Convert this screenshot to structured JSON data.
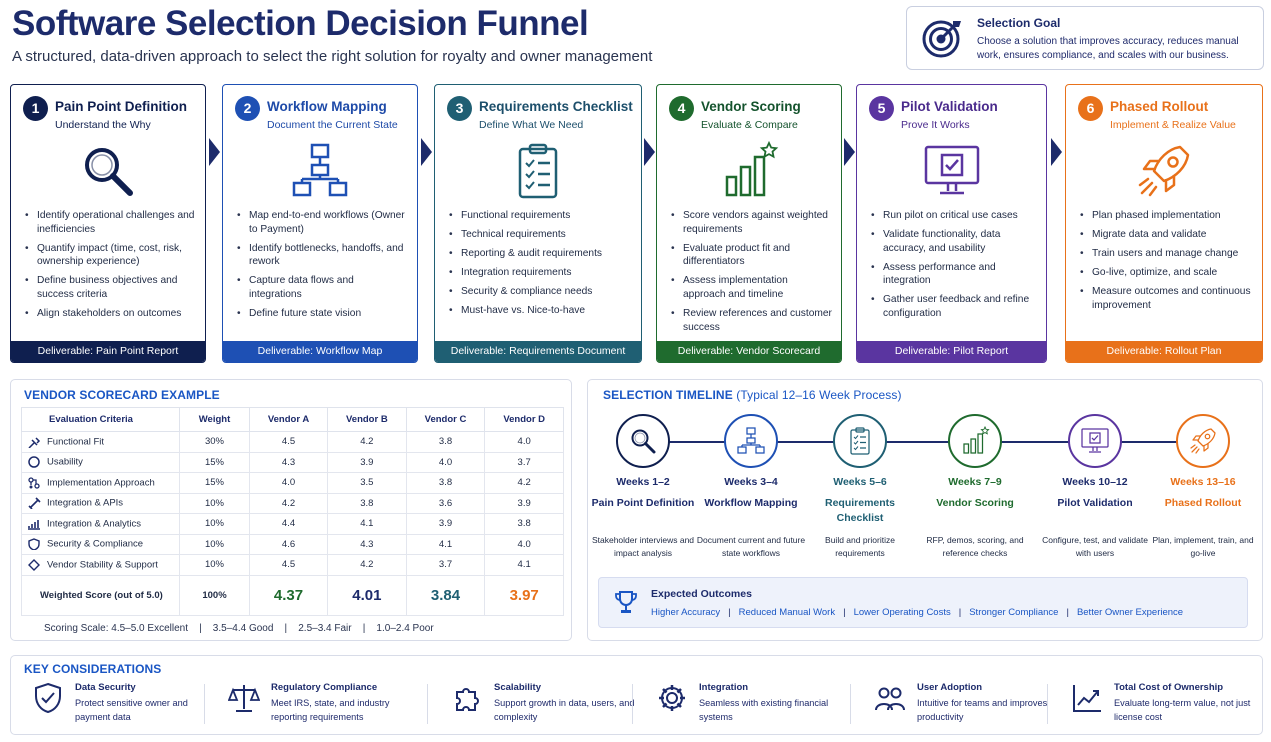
{
  "header": {
    "title": "Software Selection Decision Funnel",
    "subtitle": "A structured, data-driven approach to select the right solution for royalty and owner management"
  },
  "goal": {
    "title": "Selection Goal",
    "text": "Choose a solution that improves accuracy, reduces manual work, ensures compliance, and scales with our business.",
    "icon": "target-icon"
  },
  "steps": [
    {
      "number": "1",
      "title": "Pain Point Definition",
      "subtitle": "Understand the Why",
      "icon": "magnifier-icon",
      "color": "#0f1f4f",
      "text_color": "#0f1f4f",
      "items": [
        "Identify operational challenges and inefficiencies",
        "Quantify impact (time, cost, risk, ownership experience)",
        "Define business objectives and success criteria",
        "Align stakeholders on outcomes"
      ],
      "deliverable": "Deliverable: Pain Point Report"
    },
    {
      "number": "2",
      "title": "Workflow Mapping",
      "subtitle": "Document the Current State",
      "icon": "workflow-icon",
      "color": "#1e50b4",
      "text_color": "#1e4aa8",
      "items": [
        "Map end-to-end workflows (Owner to Payment)",
        "Identify bottlenecks, handoffs, and rework",
        "Capture data flows and integrations",
        "Define future state vision"
      ],
      "deliverable": "Deliverable: Workflow Map"
    },
    {
      "number": "3",
      "title": "Requirements Checklist",
      "subtitle": "Define What We Need",
      "icon": "clipboard-icon",
      "color": "#1f5f73",
      "text_color": "#1d4f6b",
      "items": [
        "Functional requirements",
        "Technical requirements",
        "Reporting & audit requirements",
        "Integration requirements",
        "Security & compliance needs",
        "Must-have vs. Nice-to-have"
      ],
      "deliverable": "Deliverable: Requirements Document"
    },
    {
      "number": "4",
      "title": "Vendor Scoring",
      "subtitle": "Evaluate & Compare",
      "icon": "bar-chart-star-icon",
      "color": "#1f6b2e",
      "text_color": "#14532d",
      "items": [
        "Score vendors against weighted requirements",
        "Evaluate product fit and differentiators",
        "Assess implementation approach and timeline",
        "Review references and customer success"
      ],
      "deliverable": "Deliverable: Vendor Scorecard"
    },
    {
      "number": "5",
      "title": "Pilot Validation",
      "subtitle": "Prove It Works",
      "icon": "monitor-check-icon",
      "color": "#5a35a0",
      "text_color": "#4a2a8c",
      "items": [
        "Run pilot on critical use cases",
        "Validate functionality, data accuracy, and usability",
        "Assess performance and integration",
        "Gather user feedback and refine configuration"
      ],
      "deliverable": "Deliverable: Pilot Report"
    },
    {
      "number": "6",
      "title": "Phased Rollout",
      "subtitle": "Implement & Realize Value",
      "icon": "rocket-icon",
      "color": "#e8711a",
      "text_color": "#e8711a",
      "items": [
        "Plan phased implementation",
        "Migrate data and validate",
        "Train users and manage change",
        "Go-live, optimize, and scale",
        "Measure outcomes and continuous improvement"
      ],
      "deliverable": "Deliverable: Rollout Plan"
    }
  ],
  "scorecard": {
    "heading": "VENDOR SCORECARD EXAMPLE",
    "columns": [
      "Evaluation Criteria",
      "Weight",
      "Vendor A",
      "Vendor B",
      "Vendor C",
      "Vendor D"
    ],
    "rows": [
      {
        "criteria": "Functional Fit",
        "icon": "tools-icon",
        "weight": "30%",
        "a": "4.5",
        "b": "4.2",
        "c": "3.8",
        "d": "4.0"
      },
      {
        "criteria": "Usability",
        "icon": "circle-icon",
        "weight": "15%",
        "a": "4.3",
        "b": "3.9",
        "c": "4.0",
        "d": "3.7"
      },
      {
        "criteria": "Implementation Approach",
        "icon": "flow-icon",
        "weight": "15%",
        "a": "4.0",
        "b": "3.5",
        "c": "3.8",
        "d": "4.2"
      },
      {
        "criteria": "Integration & APIs",
        "icon": "link-icon",
        "weight": "10%",
        "a": "4.2",
        "b": "3.8",
        "c": "3.6",
        "d": "3.9"
      },
      {
        "criteria": "Integration & Analytics",
        "icon": "analytics-icon",
        "weight": "10%",
        "a": "4.4",
        "b": "4.1",
        "c": "3.9",
        "d": "3.8"
      },
      {
        "criteria": "Security & Compliance",
        "icon": "shield-icon",
        "weight": "10%",
        "a": "4.6",
        "b": "4.3",
        "c": "4.1",
        "d": "4.0"
      },
      {
        "criteria": "Vendor Stability & Support",
        "icon": "diamond-icon",
        "weight": "10%",
        "a": "4.5",
        "b": "4.2",
        "c": "3.7",
        "d": "4.1"
      }
    ],
    "total": {
      "label": "Weighted Score (out of 5.0)",
      "weight": "100%",
      "a": "4.37",
      "b": "4.01",
      "c": "3.84",
      "d": "3.97"
    },
    "score_colors": {
      "a": "#1f6b2e",
      "b": "#1d2b6b",
      "c": "#1f5f73",
      "d": "#e8711a"
    },
    "scale": "Scoring Scale: 4.5–5.0 Excellent    |    3.5–4.4 Good    |    2.5–3.4 Fair    |    1.0–2.4 Poor"
  },
  "timeline": {
    "heading": "SELECTION TIMELINE",
    "heading_note": "(Typical 12–16 Week Process)",
    "phases": [
      {
        "weeks": "Weeks 1–2",
        "name": "Pain Point Definition",
        "desc": "Stakeholder interviews and impact analysis",
        "icon": "magnifier-icon",
        "color": "#0f1f4f",
        "weeks_color": "#1d2b6b"
      },
      {
        "weeks": "Weeks 3–4",
        "name": "Workflow Mapping",
        "desc": "Document current and future state workflows",
        "icon": "workflow-icon",
        "color": "#1e50b4",
        "weeks_color": "#1d2b6b"
      },
      {
        "weeks": "Weeks 5–6",
        "name": "Requirements Checklist",
        "desc": "Build and prioritize requirements",
        "icon": "clipboard-icon",
        "color": "#1f5f73",
        "weeks_color": "#1f5f73"
      },
      {
        "weeks": "Weeks 7–9",
        "name": "Vendor Scoring",
        "desc": "RFP, demos, scoring, and reference checks",
        "icon": "bar-chart-star-icon",
        "color": "#1f6b2e",
        "weeks_color": "#1f6b2e"
      },
      {
        "weeks": "Weeks 10–12",
        "name": "Pilot Validation",
        "desc": "Configure, test, and validate with users",
        "icon": "monitor-check-icon",
        "color": "#5a35a0",
        "weeks_color": "#1d2b6b"
      },
      {
        "weeks": "Weeks 13–16",
        "name": "Phased Rollout",
        "desc": "Plan, implement, train, and go-live",
        "icon": "rocket-icon",
        "color": "#e8711a",
        "weeks_color": "#e8711a"
      }
    ]
  },
  "outcomes": {
    "title": "Expected Outcomes",
    "icon": "trophy-icon",
    "items": [
      "Higher Accuracy",
      "Reduced Manual Work",
      "Lower Operating Costs",
      "Stronger Compliance",
      "Better Owner Experience"
    ],
    "separator": "|"
  },
  "considerations": {
    "heading": "KEY CONSIDERATIONS",
    "items": [
      {
        "title": "Data Security",
        "desc": "Protect sensitive owner and payment data",
        "icon": "shield-check-icon"
      },
      {
        "title": "Regulatory Compliance",
        "desc": "Meet IRS, state, and industry reporting requirements",
        "icon": "scales-icon"
      },
      {
        "title": "Scalability",
        "desc": "Support growth in data, users, and complexity",
        "icon": "puzzle-icon"
      },
      {
        "title": "Integration",
        "desc": "Seamless with existing financial systems",
        "icon": "gear-icon"
      },
      {
        "title": "User Adoption",
        "desc": "Intuitive for teams and improves productivity",
        "icon": "users-icon"
      },
      {
        "title": "Total Cost of Ownership",
        "desc": "Evaluate long-term value, not just license cost",
        "icon": "trend-chart-icon"
      }
    ]
  }
}
